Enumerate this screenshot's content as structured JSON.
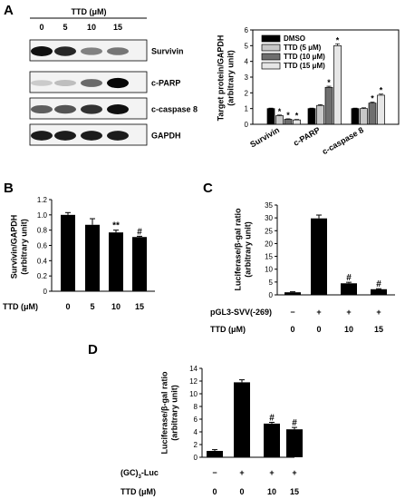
{
  "panels": {
    "a": {
      "letter": "A",
      "header": "TTD (μM)",
      "doses": [
        "0",
        "5",
        "10",
        "15"
      ],
      "blots": [
        {
          "label": "Survivin",
          "intensity": [
            0.95,
            0.85,
            0.45,
            0.5
          ]
        },
        {
          "label": "c-PARP",
          "intensity": [
            0.12,
            0.18,
            0.55,
            1.0
          ]
        },
        {
          "label": "c-caspase 8",
          "intensity": [
            0.6,
            0.65,
            0.8,
            0.95
          ]
        },
        {
          "label": "GAPDH",
          "intensity": [
            0.9,
            0.9,
            0.9,
            0.9
          ]
        }
      ]
    },
    "b": {
      "letter": "B"
    },
    "c": {
      "letter": "C"
    },
    "d": {
      "letter": "D"
    }
  },
  "chart_data": [
    {
      "id": "A-bar",
      "type": "bar",
      "ylabel": [
        "Target protein/GAPDH",
        "(arbitrary unit)"
      ],
      "ylim": [
        0,
        6
      ],
      "yticks": [
        "0",
        "1",
        "2",
        "3",
        "4",
        "5",
        "6"
      ],
      "categories": [
        "Survivin",
        "c-PARP",
        "c-caspase 8"
      ],
      "legend_placement": "top-left",
      "series": [
        {
          "name": "DMSO",
          "color": "#000000",
          "values": [
            1.0,
            1.0,
            1.0
          ],
          "err": [
            0.03,
            0.03,
            0.03
          ],
          "marks": [
            "",
            "",
            ""
          ]
        },
        {
          "name": "TTD (5 μM)",
          "color": "#c8c8c8",
          "values": [
            0.55,
            1.2,
            1.0
          ],
          "err": [
            0.04,
            0.05,
            0.05
          ],
          "marks": [
            "*",
            "",
            ""
          ]
        },
        {
          "name": "TTD (10 μM)",
          "color": "#6e6e6e",
          "values": [
            0.32,
            2.35,
            1.35
          ],
          "err": [
            0.03,
            0.07,
            0.06
          ],
          "marks": [
            "*",
            "*",
            "*"
          ]
        },
        {
          "name": "TTD (15 μM)",
          "color": "#e6e6e6",
          "values": [
            0.28,
            5.0,
            1.85
          ],
          "err": [
            0.03,
            0.12,
            0.07
          ],
          "marks": [
            "*",
            "*",
            "*"
          ]
        }
      ]
    },
    {
      "id": "B",
      "type": "bar",
      "ylabel": [
        "Survivin/GAPDH",
        "(arbitrary unit)"
      ],
      "ylim": [
        0,
        1.2
      ],
      "yticks": [
        "0",
        "0.2",
        "0.4",
        "0.6",
        "0.8",
        "1.0",
        "1.2"
      ],
      "xlabel": "TTD (μM)",
      "categories": [
        "0",
        "5",
        "10",
        "15"
      ],
      "values": [
        1.0,
        0.87,
        0.77,
        0.71
      ],
      "err": [
        0.03,
        0.08,
        0.03,
        0.01
      ],
      "marks": [
        "",
        "",
        "**",
        "#"
      ]
    },
    {
      "id": "C",
      "type": "bar",
      "ylabel": [
        "Luciferase/β-gal ratio",
        "(arbitrary unit)"
      ],
      "ylim": [
        0,
        35
      ],
      "yticks": [
        "0",
        "5",
        "10",
        "15",
        "20",
        "25",
        "30",
        "35"
      ],
      "row_labels": [
        "pGL3-SVV(-269)",
        "TTD (μM)"
      ],
      "rows": [
        [
          "−",
          "+",
          "+",
          "+"
        ],
        [
          "0",
          "0",
          "10",
          "15"
        ]
      ],
      "values": [
        1.0,
        29.8,
        4.5,
        2.2
      ],
      "err": [
        0.2,
        1.3,
        0.4,
        0.2
      ],
      "marks": [
        "",
        "",
        "#",
        "#"
      ]
    },
    {
      "id": "D",
      "type": "bar",
      "ylabel": [
        "Luciferase/β-gal ratio",
        "(arbitrary unit)"
      ],
      "ylim": [
        0,
        14
      ],
      "yticks": [
        "0",
        "2",
        "4",
        "6",
        "8",
        "10",
        "12",
        "14"
      ],
      "row_labels": [
        "(GC)3-Luc",
        "TTD (μM)"
      ],
      "rows": [
        [
          "−",
          "+",
          "+",
          "+"
        ],
        [
          "0",
          "0",
          "10",
          "15"
        ]
      ],
      "values": [
        1.0,
        11.8,
        5.3,
        4.4
      ],
      "err": [
        0.2,
        0.4,
        0.2,
        0.3
      ],
      "marks": [
        "",
        "",
        "#",
        "#"
      ]
    }
  ]
}
